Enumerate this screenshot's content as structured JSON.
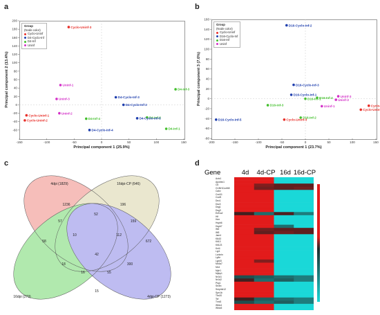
{
  "panels": {
    "a": {
      "letter": "a",
      "legend_title": "Group",
      "legend_subtitle": "(Node color)",
      "legend": [
        {
          "name": "Cyclo-Uninf",
          "color": "#e8302a"
        },
        {
          "name": "D4-Cyclo-Inf",
          "color": "#1f3fae"
        },
        {
          "name": "D4-Inf",
          "color": "#44c02e"
        },
        {
          "name": "Uninf",
          "color": "#d431c8"
        }
      ]
    },
    "b": {
      "letter": "b",
      "legend_title": "Group",
      "legend_subtitle": "(Node color)",
      "legend": [
        {
          "name": "Cyclo-Uninf",
          "color": "#e8302a"
        },
        {
          "name": "D16-Cyclo-Inf",
          "color": "#1f3fae"
        },
        {
          "name": "D16-Inf",
          "color": "#44c02e"
        },
        {
          "name": "Uninf",
          "color": "#d431c8"
        }
      ]
    },
    "c": {
      "letter": "c"
    },
    "d": {
      "letter": "d"
    }
  },
  "chart_data": [
    {
      "type": "scatter",
      "panel": "a",
      "xlabel": "Principal component 1 (25.9%)",
      "ylabel": "Principal component 2 (13.4%)",
      "xlim": [
        -150,
        150
      ],
      "ylim": [
        -80,
        200
      ],
      "xticks": [
        -150,
        -100,
        -50,
        0,
        50,
        100,
        150
      ],
      "yticks": [
        -60,
        -40,
        -20,
        0,
        20,
        40,
        60,
        80,
        100,
        120,
        140,
        160,
        180,
        200
      ],
      "points": [
        {
          "label": "Cyclo-Uninf-3",
          "x": -60,
          "y": 185,
          "group": "Cyclo-Uninf"
        },
        {
          "label": "Cyclo-Uninf-1",
          "x": -137,
          "y": -25,
          "group": "Cyclo-Uninf"
        },
        {
          "label": "Cyclo-Uninf-2",
          "x": -140,
          "y": -37,
          "group": "Cyclo-Uninf"
        },
        {
          "label": "Uninf-1",
          "x": -75,
          "y": 47,
          "group": "Uninf"
        },
        {
          "label": "Uninf-3",
          "x": -82,
          "y": 14,
          "group": "Uninf"
        },
        {
          "label": "Uninf-2",
          "x": -77,
          "y": -20,
          "group": "Uninf"
        },
        {
          "label": "D4-Inf-3",
          "x": 135,
          "y": 37,
          "group": "D4-Inf"
        },
        {
          "label": "D4-Inf-4",
          "x": -28,
          "y": -33,
          "group": "D4-Inf"
        },
        {
          "label": "D4-Inf-2",
          "x": 83,
          "y": -30,
          "group": "D4-Inf"
        },
        {
          "label": "D4-Inf-1",
          "x": 118,
          "y": -57,
          "group": "D4-Inf"
        },
        {
          "label": "D4-Cyclo-Inf-3",
          "x": 26,
          "y": 18,
          "group": "D4-Cyclo-Inf"
        },
        {
          "label": "D4-Cyclo-Inf-2",
          "x": 40,
          "y": 0,
          "group": "D4-Cyclo-Inf"
        },
        {
          "label": "D4-Cyclo-Inf-5",
          "x": 65,
          "y": -32,
          "group": "D4-Cyclo-Inf"
        },
        {
          "label": "D4-Cyclo-Inf-4",
          "x": -22,
          "y": -60,
          "group": "D4-Cyclo-Inf"
        }
      ]
    },
    {
      "type": "scatter",
      "panel": "b",
      "xlabel": "Principal component 1 (23.7%)",
      "ylabel": "Principal component 3 (7.6%)",
      "xlim": [
        -200,
        150
      ],
      "ylim": [
        -80,
        160
      ],
      "xticks": [
        -200,
        -150,
        -100,
        -50,
        0,
        50,
        100,
        150
      ],
      "yticks": [
        -80,
        -60,
        -40,
        -20,
        0,
        20,
        40,
        60,
        80,
        100,
        120,
        140,
        160
      ],
      "points": [
        {
          "label": "D16-Cyclo-Inf-2",
          "x": -40,
          "y": 148,
          "group": "D16-Cyclo-Inf"
        },
        {
          "label": "D16-Cyclo-Inf-3",
          "x": -25,
          "y": 28,
          "group": "D16-Cyclo-Inf"
        },
        {
          "label": "D16-Cyclo-Inf-1",
          "x": -30,
          "y": 8,
          "group": "D16-Cyclo-Inf"
        },
        {
          "label": "D16-Cyclo-Inf-5",
          "x": -190,
          "y": -42,
          "group": "D16-Cyclo-Inf"
        },
        {
          "label": "D16-Inf-3",
          "x": -80,
          "y": -13,
          "group": "D16-Inf"
        },
        {
          "label": "D16-Inf-1",
          "x": 0,
          "y": 0,
          "group": "D16-Inf"
        },
        {
          "label": "D16-Inf-2",
          "x": -10,
          "y": -38,
          "group": "D16-Inf"
        },
        {
          "label": "D16-Inf-4",
          "x": 25,
          "y": 2,
          "group": "D16-Inf"
        },
        {
          "label": "Uninf-3",
          "x": 70,
          "y": 5,
          "group": "Uninf"
        },
        {
          "label": "Uninf-2",
          "x": 65,
          "y": -2,
          "group": "Uninf"
        },
        {
          "label": "Uninf-1",
          "x": 35,
          "y": -15,
          "group": "Uninf"
        },
        {
          "label": "Cyclo-Uninf-3",
          "x": -45,
          "y": -42,
          "group": "Cyclo-Uninf"
        },
        {
          "label": "Cyclo-Uninf-1",
          "x": 135,
          "y": -14,
          "group": "Cyclo-Uninf"
        },
        {
          "label": "Cyclo-Uninf-2",
          "x": 118,
          "y": -22,
          "group": "Cyclo-Uninf"
        }
      ]
    },
    {
      "type": "venn",
      "panel": "c",
      "sets": [
        {
          "name": "4dpi (1829)",
          "color": "#f08a82"
        },
        {
          "name": "16dpi-CP (646)",
          "color": "#d9d5a8"
        },
        {
          "name": "16dpi (273)",
          "color": "#72d86c"
        },
        {
          "name": "4dpi-CP (1273)",
          "color": "#8a86e6"
        }
      ],
      "regions": [
        {
          "label": "1236"
        },
        {
          "label": "196"
        },
        {
          "label": "58"
        },
        {
          "label": "672"
        },
        {
          "label": "52"
        },
        {
          "label": "57"
        },
        {
          "label": "159"
        },
        {
          "label": "10"
        },
        {
          "label": "112"
        },
        {
          "label": "18"
        },
        {
          "label": "42"
        },
        {
          "label": "300"
        },
        {
          "label": "16"
        },
        {
          "label": "55"
        },
        {
          "label": "15"
        }
      ]
    },
    {
      "type": "heatmap",
      "panel": "d",
      "row_header": "Gene",
      "columns": [
        "4d",
        "4d-CP",
        "16d",
        "16d-CP"
      ],
      "genes": [
        "Actc1",
        "Apobec1",
        "C6",
        "CUNH11orf48",
        "Cahv",
        "Cxcl11",
        "Cxcl9",
        "Dnc1",
        "Dsc3",
        "Dsg1",
        "Dsg3",
        "Eef1a2",
        "Hif",
        "Hmr",
        "Hspb6",
        "Hspb7",
        "Ifit2",
        "Ifit3",
        "Jam4",
        "Klk10",
        "Klt13",
        "Klt123",
        "Kni4",
        "Lgr1",
        "Loricrin",
        "Ly6e",
        "Lypd3",
        "Mx4a7",
        "Mx4",
        "Myh1",
        "Mybp1",
        "Nr1d1",
        "Nr1d2",
        "Pkp1",
        "Stx5n",
        "Serpinb12",
        "Sprr1b",
        "Tbx20",
        "Tef",
        "Tnni3",
        "Wfdc1",
        "Wfdc5"
      ],
      "values": [
        [
          1,
          1,
          0,
          0
        ],
        [
          1,
          1,
          0,
          0
        ],
        [
          1,
          0.7,
          0.6,
          0.6
        ],
        [
          1,
          0.65,
          0.6,
          0.65
        ],
        [
          1,
          1,
          0,
          0
        ],
        [
          1,
          1,
          0,
          0
        ],
        [
          1,
          1,
          0,
          0
        ],
        [
          1,
          1,
          0,
          0
        ],
        [
          1,
          1,
          0,
          0
        ],
        [
          1,
          1,
          0,
          0
        ],
        [
          1,
          1,
          0,
          0
        ],
        [
          0.5,
          0.35,
          0.55,
          0.3
        ],
        [
          1,
          1,
          0,
          0
        ],
        [
          1,
          1,
          0,
          0
        ],
        [
          1,
          1,
          0,
          0
        ],
        [
          1,
          1,
          0.35,
          0
        ],
        [
          1,
          0.65,
          0.6,
          0.6
        ],
        [
          1,
          0.6,
          0.65,
          0.6
        ],
        [
          1,
          1,
          0,
          0
        ],
        [
          1,
          1,
          0,
          0
        ],
        [
          1,
          1,
          0,
          0
        ],
        [
          1,
          1,
          0,
          0
        ],
        [
          1,
          1,
          0,
          0
        ],
        [
          1,
          1,
          0,
          0
        ],
        [
          1,
          1,
          0,
          0
        ],
        [
          1,
          1,
          0,
          0
        ],
        [
          1,
          0.7,
          0,
          0
        ],
        [
          1,
          1,
          0,
          0
        ],
        [
          1,
          1,
          0,
          0
        ],
        [
          1,
          1,
          0,
          0
        ],
        [
          1,
          1,
          0,
          0
        ],
        [
          0.45,
          0.4,
          0.35,
          0.3
        ],
        [
          0.5,
          0.35,
          0.4,
          0.3
        ],
        [
          1,
          1,
          0,
          0
        ],
        [
          1,
          1,
          0,
          0
        ],
        [
          1,
          1,
          0,
          0
        ],
        [
          1,
          1,
          0,
          0
        ],
        [
          1,
          1,
          0,
          0
        ],
        [
          0.5,
          0.4,
          0.35,
          0.3
        ],
        [
          0.45,
          0.35,
          0.4,
          0.3
        ],
        [
          1,
          1,
          0,
          0
        ],
        [
          1,
          1,
          0,
          0
        ]
      ],
      "color_low": "#1ad8d8",
      "color_high": "#e21b1b"
    }
  ]
}
